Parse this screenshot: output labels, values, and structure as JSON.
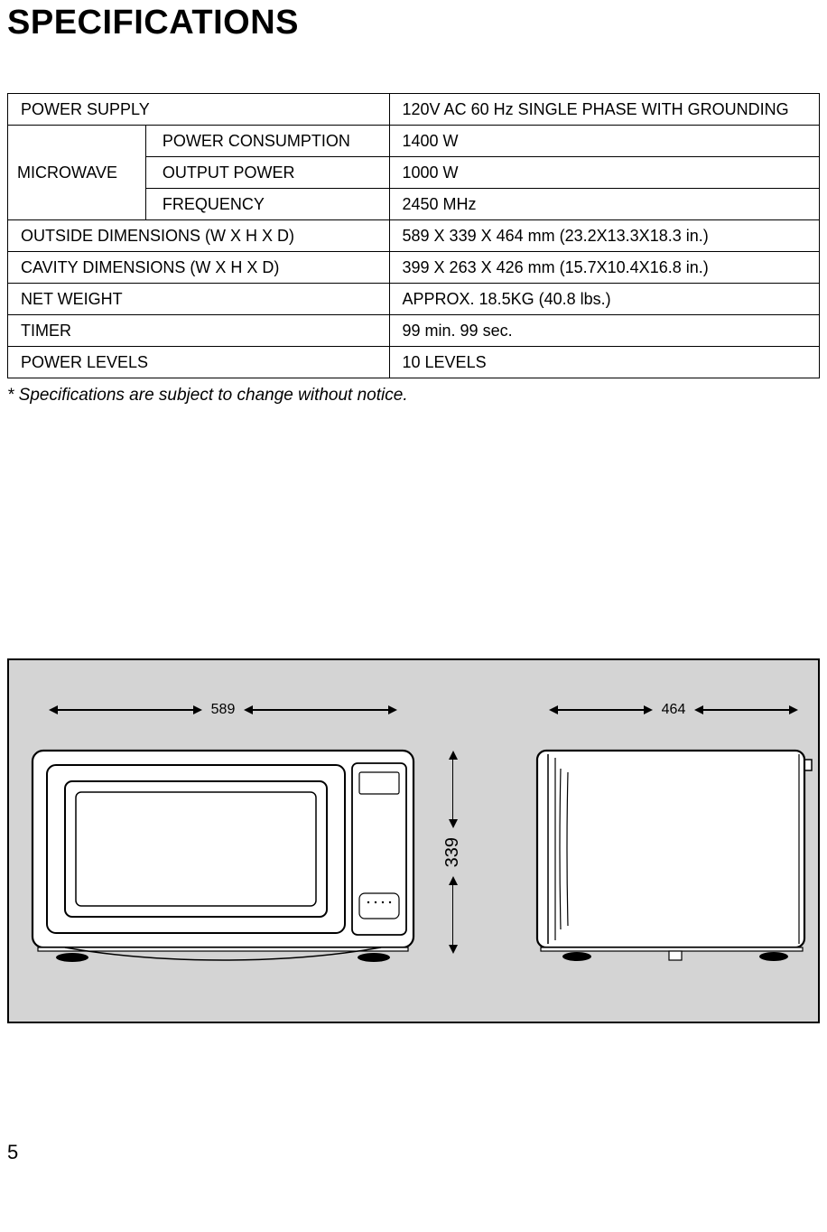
{
  "title": "SPECIFICATIONS",
  "table": {
    "rows": [
      {
        "label": "POWER SUPPLY",
        "value": "120V AC 60 Hz SINGLE PHASE WITH GROUNDING",
        "type": "single"
      },
      {
        "label": "MICROWAVE",
        "sublabel": "POWER CONSUMPTION",
        "value": "1400 W",
        "type": "rowspan_start",
        "rowspan": 3
      },
      {
        "sublabel": "OUTPUT POWER",
        "value": "1000 W",
        "type": "sub"
      },
      {
        "sublabel": "FREQUENCY",
        "value": "2450 MHz",
        "type": "sub"
      },
      {
        "label": "OUTSIDE DIMENSIONS (W X H X D)",
        "value": "589 X 339 X 464 mm (23.2X13.3X18.3 in.)",
        "type": "single"
      },
      {
        "label": "CAVITY DIMENSIONS (W X H X D)",
        "value": "399 X 263 X 426 mm (15.7X10.4X16.8 in.)",
        "type": "single"
      },
      {
        "label": "NET WEIGHT",
        "value": "APPROX. 18.5KG (40.8 lbs.)",
        "type": "single"
      },
      {
        "label": "TIMER",
        "value": "99 min. 99 sec.",
        "type": "single"
      },
      {
        "label": "POWER LEVELS",
        "value": "10 LEVELS",
        "type": "single"
      }
    ]
  },
  "footnote": "* Specifications are subject to change without notice.",
  "diagram": {
    "width_label": "589",
    "depth_label": "464",
    "height_label": "339",
    "box_bg": "#d4d4d4",
    "stroke": "#000000",
    "front_width": 430,
    "front_arrow_width": 430,
    "side_width": 310,
    "side_arrow_width": 310,
    "height_arrow": 228
  },
  "page_number": "5"
}
